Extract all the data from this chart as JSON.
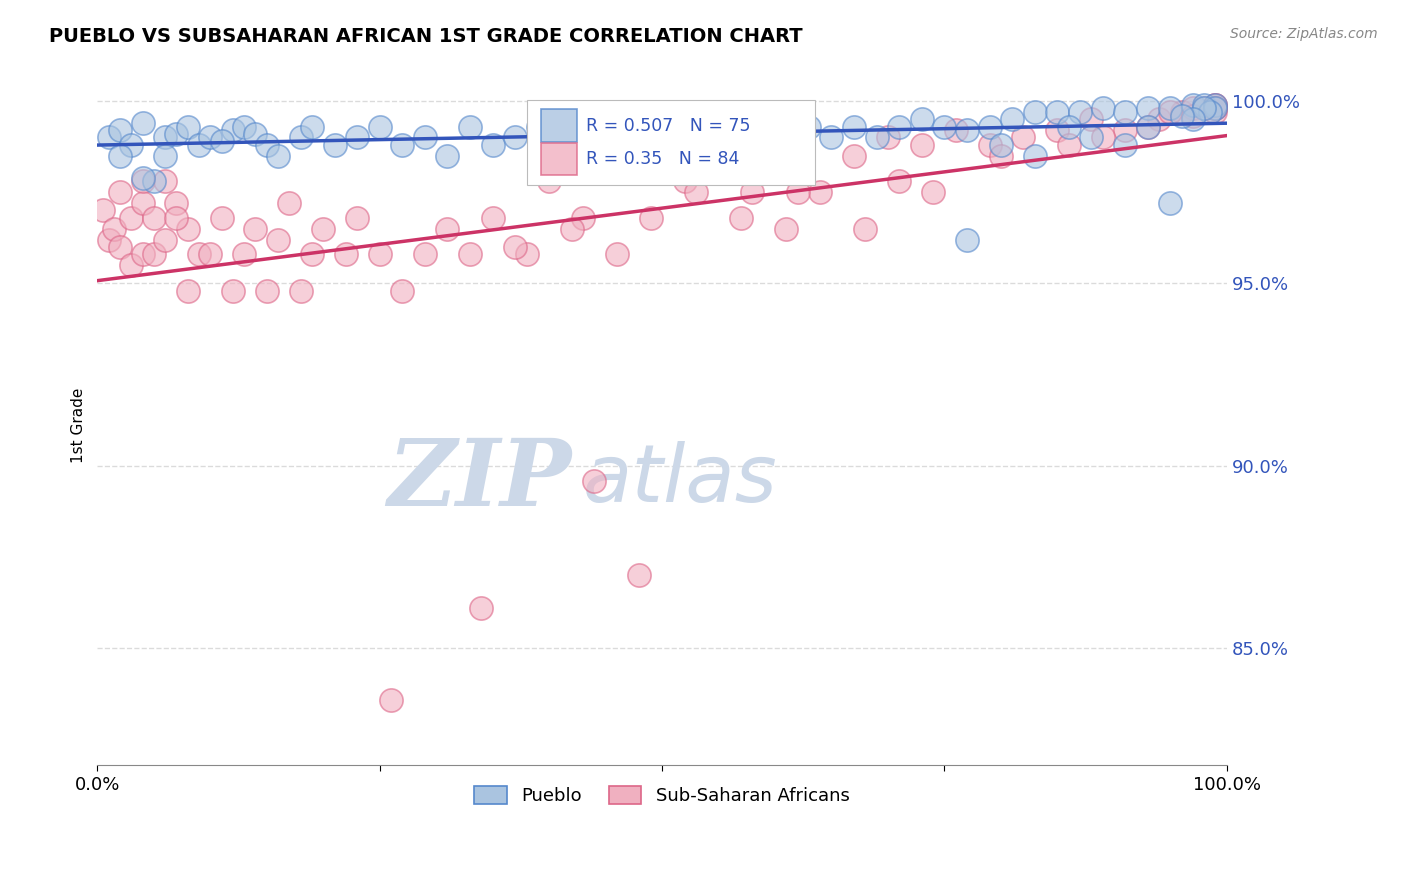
{
  "title": "PUEBLO VS SUBSAHARAN AFRICAN 1ST GRADE CORRELATION CHART",
  "source": "Source: ZipAtlas.com",
  "ylabel": "1st Grade",
  "xlim": [
    0.0,
    1.0
  ],
  "ylim": [
    0.818,
    1.004
  ],
  "yticks": [
    0.85,
    0.9,
    0.95,
    1.0
  ],
  "ytick_labels": [
    "85.0%",
    "90.0%",
    "95.0%",
    "100.0%"
  ],
  "legend_pueblo_label": "Pueblo",
  "legend_ssa_label": "Sub-Saharan Africans",
  "R_pueblo": 0.507,
  "N_pueblo": 75,
  "R_ssa": 0.35,
  "N_ssa": 84,
  "pueblo_color": "#aac4e0",
  "ssa_color": "#f0b0c0",
  "pueblo_edge_color": "#5588cc",
  "ssa_edge_color": "#dd6688",
  "pueblo_line_color": "#3355bb",
  "ssa_line_color": "#cc3366",
  "background_color": "#ffffff",
  "watermark_color": "#ccd8e8",
  "grid_color": "#cccccc",
  "pueblo_x": [
    0.01,
    0.02,
    0.03,
    0.04,
    0.05,
    0.02,
    0.04,
    0.06,
    0.07,
    0.06,
    0.08,
    0.09,
    0.1,
    0.12,
    0.11,
    0.13,
    0.14,
    0.15,
    0.16,
    0.18,
    0.19,
    0.21,
    0.23,
    0.25,
    0.27,
    0.29,
    0.31,
    0.33,
    0.35,
    0.37,
    0.39,
    0.41,
    0.43,
    0.45,
    0.47,
    0.49,
    0.51,
    0.53,
    0.55,
    0.57,
    0.59,
    0.61,
    0.63,
    0.65,
    0.67,
    0.69,
    0.71,
    0.73,
    0.75,
    0.77,
    0.79,
    0.81,
    0.83,
    0.85,
    0.87,
    0.89,
    0.91,
    0.93,
    0.95,
    0.97,
    0.98,
    0.99,
    0.99,
    0.985,
    0.98,
    0.97,
    0.96,
    0.95,
    0.93,
    0.91,
    0.88,
    0.86,
    0.83,
    0.8,
    0.77
  ],
  "pueblo_y": [
    0.99,
    0.992,
    0.988,
    0.994,
    0.978,
    0.985,
    0.979,
    0.99,
    0.991,
    0.985,
    0.993,
    0.988,
    0.99,
    0.992,
    0.989,
    0.993,
    0.991,
    0.988,
    0.985,
    0.99,
    0.993,
    0.988,
    0.99,
    0.993,
    0.988,
    0.99,
    0.985,
    0.993,
    0.988,
    0.99,
    0.993,
    0.988,
    0.99,
    0.993,
    0.988,
    0.99,
    0.993,
    0.997,
    0.992,
    0.993,
    0.99,
    0.988,
    0.993,
    0.99,
    0.993,
    0.99,
    0.993,
    0.995,
    0.993,
    0.992,
    0.993,
    0.995,
    0.997,
    0.997,
    0.997,
    0.998,
    0.997,
    0.998,
    0.998,
    0.999,
    0.999,
    0.999,
    0.998,
    0.997,
    0.998,
    0.995,
    0.996,
    0.972,
    0.993,
    0.988,
    0.99,
    0.993,
    0.985,
    0.988,
    0.962
  ],
  "ssa_x": [
    0.005,
    0.01,
    0.015,
    0.02,
    0.02,
    0.03,
    0.03,
    0.04,
    0.04,
    0.04,
    0.05,
    0.05,
    0.06,
    0.07,
    0.08,
    0.06,
    0.07,
    0.08,
    0.09,
    0.1,
    0.11,
    0.12,
    0.13,
    0.14,
    0.15,
    0.16,
    0.17,
    0.18,
    0.19,
    0.2,
    0.22,
    0.23,
    0.25,
    0.27,
    0.29,
    0.31,
    0.33,
    0.35,
    0.38,
    0.4,
    0.43,
    0.46,
    0.49,
    0.52,
    0.55,
    0.58,
    0.61,
    0.64,
    0.67,
    0.7,
    0.73,
    0.76,
    0.79,
    0.82,
    0.85,
    0.88,
    0.91,
    0.94,
    0.96,
    0.97,
    0.98,
    0.99,
    0.99,
    0.99,
    0.99,
    0.99,
    0.37,
    0.42,
    0.48,
    0.53,
    0.57,
    0.62,
    0.68,
    0.74,
    0.8,
    0.86,
    0.89,
    0.93,
    0.95,
    0.97,
    0.71,
    0.26,
    0.34,
    0.44
  ],
  "ssa_y": [
    0.97,
    0.962,
    0.965,
    0.96,
    0.975,
    0.955,
    0.968,
    0.972,
    0.958,
    0.978,
    0.958,
    0.968,
    0.962,
    0.972,
    0.965,
    0.978,
    0.968,
    0.948,
    0.958,
    0.958,
    0.968,
    0.948,
    0.958,
    0.965,
    0.948,
    0.962,
    0.972,
    0.948,
    0.958,
    0.965,
    0.958,
    0.968,
    0.958,
    0.948,
    0.958,
    0.965,
    0.958,
    0.968,
    0.958,
    0.978,
    0.968,
    0.958,
    0.968,
    0.978,
    0.988,
    0.975,
    0.965,
    0.975,
    0.985,
    0.99,
    0.988,
    0.992,
    0.988,
    0.99,
    0.992,
    0.995,
    0.992,
    0.995,
    0.997,
    0.998,
    0.998,
    0.999,
    0.998,
    0.997,
    0.999,
    0.998,
    0.96,
    0.965,
    0.87,
    0.975,
    0.968,
    0.975,
    0.965,
    0.975,
    0.985,
    0.988,
    0.99,
    0.993,
    0.997,
    0.996,
    0.978,
    0.836,
    0.861,
    0.896
  ]
}
